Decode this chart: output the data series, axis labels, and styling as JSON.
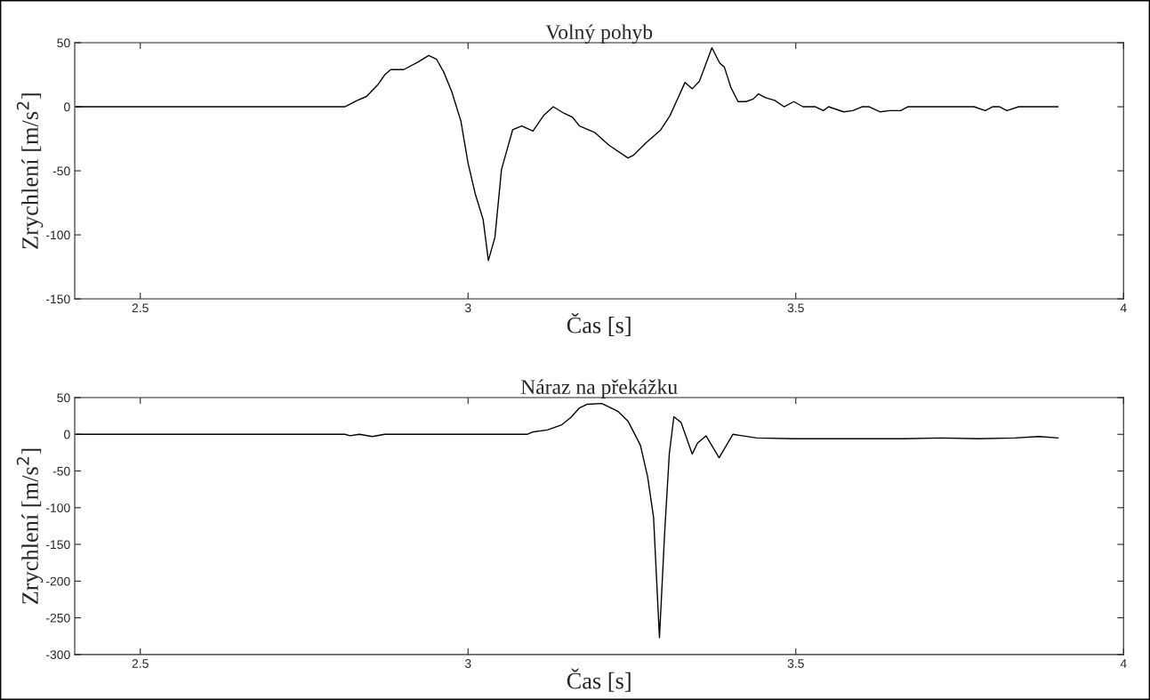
{
  "chart_data": [
    {
      "type": "line",
      "title": "Volný pohyb",
      "xlabel": "Čas [s]",
      "ylabel": "Zrychlení [m/s$^{2}$]",
      "xlim": [
        2.4,
        4
      ],
      "xticks": [
        2.5,
        3,
        3.5,
        4
      ],
      "ylim": [
        -150,
        50
      ],
      "yticks": [
        -150,
        -100,
        -50,
        0,
        50
      ],
      "grid": false,
      "marker": "none",
      "line_style": "solid",
      "series": [
        {
          "color": "#000000",
          "x": [
            2.402,
            2.812,
            2.831,
            2.845,
            2.862,
            2.873,
            2.882,
            2.902,
            2.924,
            2.94,
            2.952,
            2.963,
            2.975,
            2.989,
            3.0,
            3.011,
            3.023,
            3.031,
            3.041,
            3.051,
            3.068,
            3.082,
            3.099,
            3.115,
            3.13,
            3.146,
            3.159,
            3.17,
            3.193,
            3.215,
            3.244,
            3.252,
            3.272,
            3.294,
            3.308,
            3.331,
            3.342,
            3.353,
            3.372,
            3.384,
            3.391,
            3.401,
            3.412,
            3.424,
            3.435,
            3.443,
            3.454,
            3.468,
            3.482,
            3.497,
            3.511,
            3.53,
            3.542,
            3.55,
            3.573,
            3.587,
            3.601,
            3.612,
            3.629,
            3.643,
            3.66,
            3.671,
            3.772,
            3.789,
            3.8,
            3.811,
            3.822,
            3.84,
            3.9
          ],
          "values": [
            0,
            0,
            5,
            8,
            17,
            25,
            29,
            29,
            35,
            40,
            37,
            27,
            12,
            -11,
            -44,
            -68,
            -88,
            -120,
            -102,
            -49,
            -18,
            -15,
            -19,
            -7,
            0,
            -5,
            -8,
            -15,
            -20,
            -30,
            -40,
            -38,
            -28,
            -18,
            -7,
            19,
            14,
            20,
            46,
            34,
            31,
            15,
            4,
            4,
            6,
            10,
            7,
            5,
            0,
            4,
            0,
            0,
            -3,
            0,
            -4,
            -3,
            0,
            0,
            -4,
            -3,
            -3,
            0,
            0,
            -3,
            0,
            0,
            -3,
            0,
            0
          ]
        }
      ]
    },
    {
      "type": "line",
      "title": "Náraz na překážku",
      "xlabel": "Čas [s]",
      "ylabel": "Zrychlení [m/s$^{2}$]",
      "xlim": [
        2.4,
        4
      ],
      "xticks": [
        2.5,
        3,
        3.5,
        4
      ],
      "ylim": [
        -300,
        50
      ],
      "yticks": [
        -300,
        -250,
        -200,
        -150,
        -100,
        -50,
        0,
        50
      ],
      "grid": false,
      "marker": "none",
      "line_style": "solid",
      "series": [
        {
          "color": "#000000",
          "x": [
            2.402,
            2.812,
            2.82,
            2.834,
            2.854,
            2.873,
            3.09,
            3.098,
            3.121,
            3.143,
            3.157,
            3.17,
            3.182,
            3.204,
            3.229,
            3.244,
            3.263,
            3.274,
            3.283,
            3.292,
            3.3,
            3.307,
            3.314,
            3.325,
            3.342,
            3.35,
            3.363,
            3.383,
            3.404,
            3.418,
            3.44,
            3.497,
            3.609,
            3.665,
            3.722,
            3.778,
            3.834,
            3.871,
            3.9
          ],
          "values": [
            0,
            0,
            -2,
            0,
            -3,
            0,
            0,
            3,
            6,
            13,
            23,
            36,
            41,
            42,
            31,
            18,
            -15,
            -58,
            -113,
            -277,
            -133,
            -27,
            24,
            16,
            -27,
            -12,
            -2,
            -32,
            0,
            -2,
            -5,
            -6,
            -6,
            -6,
            -5,
            -6,
            -5,
            -3,
            -5
          ]
        }
      ]
    }
  ]
}
